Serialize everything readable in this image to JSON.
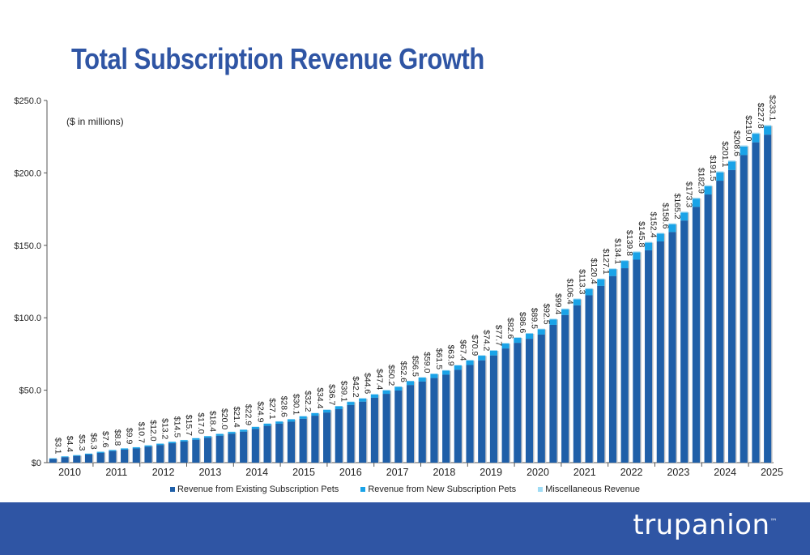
{
  "title": "Total Subscription Revenue Growth",
  "colors": {
    "title": "#2f55a4",
    "footer": "#2f55a4",
    "existing": "#1f5fa8",
    "new": "#1aa3e8",
    "misc": "#9fdcf5"
  },
  "brand": {
    "logo_text": "trupanion",
    "logo_mark": "™",
    "logo_icon": "paw-print-icon"
  },
  "chart_data": {
    "type": "bar",
    "stacked": true,
    "unit_note": "($ in millions)",
    "y_ticks": [
      "$0",
      "$50.0",
      "$100.0",
      "$150.0",
      "$200.0",
      "$250.0"
    ],
    "ylim": [
      0,
      250
    ],
    "grid": false,
    "legend_placement": "bottom",
    "year_labels": [
      "2010",
      "2011",
      "2012",
      "2013",
      "2014",
      "2015",
      "2016",
      "2017",
      "2018",
      "2019",
      "2020",
      "2021",
      "2022",
      "2023",
      "2024",
      "2025"
    ],
    "series": [
      {
        "name": "Revenue from Existing Subscription Pets"
      },
      {
        "name": "Revenue from New Subscription Pets"
      },
      {
        "name": "Miscellaneous Revenue"
      }
    ],
    "total_labels": [
      "$3.1",
      "$4.4",
      "$5.3",
      "$6.3",
      "$7.6",
      "$8.8",
      "$9.9",
      "$10.7",
      "$12.0",
      "$13.2",
      "$14.5",
      "$15.7",
      "$17.0",
      "$18.4",
      "$20.0",
      "$21.4",
      "$22.9",
      "$24.9",
      "$27.1",
      "$28.6",
      "$30.1",
      "$32.2",
      "$34.4",
      "$36.7",
      "$39.1",
      "$42.2",
      "$44.6",
      "$47.4",
      "$50.2",
      "$52.6",
      "$56.5",
      "$59.0",
      "$61.5",
      "$63.9",
      "$67.4",
      "$70.9",
      "$74.2",
      "$77.7",
      "$82.6",
      "$86.6",
      "$89.5",
      "$92.5",
      "$99.4",
      "$106.4",
      "$113.3",
      "$120.4",
      "$127.1",
      "$134.1",
      "$139.8",
      "$145.8",
      "$152.4",
      "$158.6",
      "$165.2",
      "$173.3",
      "$182.9",
      "$191.5",
      "$201.1",
      "$208.6",
      "$219.0",
      "$227.8",
      "$233.1"
    ],
    "totals": [
      3.1,
      4.4,
      5.3,
      6.3,
      7.6,
      8.8,
      9.9,
      10.7,
      12.0,
      13.2,
      14.5,
      15.7,
      17.0,
      18.4,
      20.0,
      21.4,
      22.9,
      24.9,
      27.1,
      28.6,
      30.1,
      32.2,
      34.4,
      36.7,
      39.1,
      42.2,
      44.6,
      47.4,
      50.2,
      52.6,
      56.5,
      59.0,
      61.5,
      63.9,
      67.4,
      70.9,
      74.2,
      77.7,
      82.6,
      86.6,
      89.5,
      92.5,
      99.4,
      106.4,
      113.3,
      120.4,
      127.1,
      134.1,
      139.8,
      145.8,
      152.4,
      158.6,
      165.2,
      173.3,
      182.9,
      191.5,
      201.1,
      208.6,
      219.0,
      227.8,
      233.1
    ],
    "new_values": [
      0.4,
      0.5,
      0.6,
      0.6,
      0.7,
      0.7,
      0.8,
      0.8,
      0.9,
      0.9,
      1.0,
      1.0,
      1.1,
      1.1,
      1.2,
      1.2,
      1.3,
      1.4,
      1.5,
      1.5,
      1.6,
      1.7,
      1.8,
      1.9,
      2.0,
      2.1,
      2.2,
      2.3,
      2.4,
      2.5,
      2.6,
      2.7,
      2.8,
      2.9,
      3.0,
      3.1,
      3.2,
      3.3,
      3.4,
      3.5,
      3.6,
      3.7,
      3.8,
      4.0,
      4.2,
      4.4,
      4.6,
      4.8,
      5.0,
      5.1,
      5.2,
      5.3,
      5.4,
      5.5,
      5.6,
      5.7,
      5.8,
      5.8,
      5.9,
      5.9,
      5.9
    ],
    "misc_values": [
      0.1,
      0.1,
      0.1,
      0.1,
      0.1,
      0.1,
      0.1,
      0.1,
      0.1,
      0.1,
      0.1,
      0.1,
      0.1,
      0.1,
      0.2,
      0.2,
      0.2,
      0.2,
      0.2,
      0.2,
      0.2,
      0.2,
      0.2,
      0.2,
      0.2,
      0.3,
      0.3,
      0.3,
      0.3,
      0.3,
      0.3,
      0.3,
      0.3,
      0.3,
      0.3,
      0.4,
      0.4,
      0.4,
      0.4,
      0.4,
      0.4,
      0.4,
      0.5,
      0.5,
      0.5,
      0.5,
      0.5,
      0.5,
      0.6,
      0.6,
      0.6,
      0.6,
      0.6,
      0.7,
      0.7,
      0.7,
      0.7,
      0.8,
      0.8,
      0.8,
      0.8
    ]
  }
}
